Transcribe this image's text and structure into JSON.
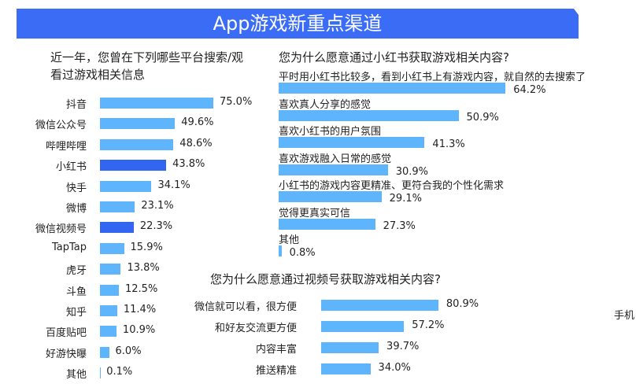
{
  "title": "App游戏新重点渠道",
  "side_text": "手机",
  "colors": {
    "bar": "#5eb5fb",
    "highlight": "#3366f0",
    "banner": "#3a6cf5"
  },
  "chart_data": [
    {
      "type": "bar",
      "orientation": "horizontal",
      "title": "近一年，您曾在下列哪些平台搜索/观看过游戏相关信息",
      "unit": "%",
      "categories": [
        "抖音",
        "微信公众号",
        "哔哩哔哩",
        "小红书",
        "快手",
        "微博",
        "微信视频号",
        "TapTap",
        "虎牙",
        "斗鱼",
        "知乎",
        "百度贴吧",
        "好游快曝",
        "其他"
      ],
      "values": [
        75.0,
        49.6,
        48.6,
        43.8,
        34.1,
        23.1,
        22.3,
        15.9,
        13.8,
        12.5,
        11.4,
        10.9,
        6.0,
        0.1
      ],
      "highlighted": [
        "小红书",
        "微信视频号"
      ]
    },
    {
      "type": "bar",
      "orientation": "horizontal",
      "title": "您为什么愿意通过小红书获取游戏相关内容?",
      "unit": "%",
      "categories": [
        "平时用小红书比较多，看到小红书上有游戏内容，就自然的去搜索了",
        "喜欢真人分享的感觉",
        "喜欢小红书的用户氛围",
        "喜欢游戏融入日常的感觉",
        "小红书的游戏内容更精准、更符合我的个性化需求",
        "觉得更真实可信",
        "其他"
      ],
      "values": [
        64.2,
        50.9,
        41.3,
        30.9,
        29.1,
        27.3,
        0.8
      ]
    },
    {
      "type": "bar",
      "orientation": "horizontal",
      "title": "您为什么愿意通过视频号获取游戏相关内容?",
      "unit": "%",
      "categories": [
        "微信就可以看，很方便",
        "和好友交流更方便",
        "内容丰富",
        "推送精准"
      ],
      "values": [
        80.9,
        57.2,
        39.7,
        34.0
      ]
    }
  ]
}
